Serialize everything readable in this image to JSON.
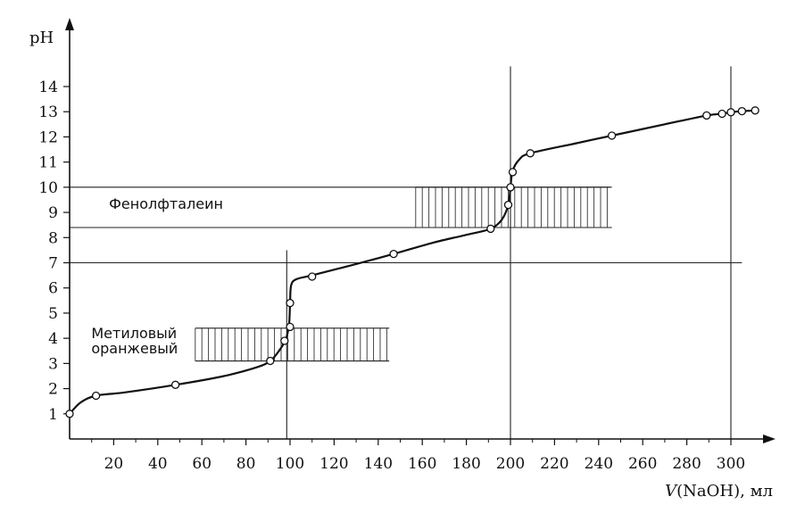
{
  "chart_data": {
    "type": "line",
    "title": "",
    "ylabel": "pH",
    "xlabel_italic": "V",
    "xlabel_rest": "(NaOH), мл",
    "xlim": [
      0,
      310
    ],
    "ylim": [
      0,
      14.8
    ],
    "x_ticks": [
      20,
      40,
      60,
      80,
      100,
      120,
      140,
      160,
      180,
      200,
      220,
      240,
      260,
      280,
      300
    ],
    "y_ticks": [
      1,
      2,
      3,
      4,
      5,
      6,
      7,
      8,
      9,
      10,
      11,
      12,
      13,
      14
    ],
    "grid": false,
    "series": [
      {
        "curve": [
          [
            0,
            1.0
          ],
          [
            5,
            1.45
          ],
          [
            12,
            1.72
          ],
          [
            25,
            1.85
          ],
          [
            48,
            2.15
          ],
          [
            70,
            2.5
          ],
          [
            85,
            2.85
          ],
          [
            91,
            3.1
          ],
          [
            95,
            3.5
          ],
          [
            98,
            3.95
          ],
          [
            99.5,
            4.5
          ],
          [
            100,
            5.35
          ],
          [
            100.5,
            6.1
          ],
          [
            103,
            6.35
          ],
          [
            110,
            6.5
          ],
          [
            130,
            6.95
          ],
          [
            147,
            7.35
          ],
          [
            165,
            7.8
          ],
          [
            182,
            8.15
          ],
          [
            191,
            8.35
          ],
          [
            196,
            8.7
          ],
          [
            199,
            9.3
          ],
          [
            200,
            10.0
          ],
          [
            201,
            10.65
          ],
          [
            204,
            11.1
          ],
          [
            209,
            11.35
          ],
          [
            230,
            11.75
          ],
          [
            246,
            12.05
          ],
          [
            270,
            12.5
          ],
          [
            289,
            12.85
          ],
          [
            296,
            12.92
          ],
          [
            300,
            12.98
          ],
          [
            305,
            13.02
          ],
          [
            311,
            13.05
          ]
        ],
        "markers": [
          [
            0,
            1.0
          ],
          [
            12,
            1.72
          ],
          [
            48,
            2.15
          ],
          [
            91,
            3.1
          ],
          [
            97.5,
            3.9
          ],
          [
            100,
            4.45
          ],
          [
            100,
            5.4
          ],
          [
            110,
            6.45
          ],
          [
            147,
            7.35
          ],
          [
            191,
            8.35
          ],
          [
            199,
            9.3
          ],
          [
            200,
            10.0
          ],
          [
            201,
            10.6
          ],
          [
            209,
            11.35
          ],
          [
            246,
            12.05
          ],
          [
            289,
            12.85
          ],
          [
            296,
            12.92
          ],
          [
            300,
            12.98
          ],
          [
            305,
            13.02
          ],
          [
            311,
            13.05
          ]
        ]
      }
    ],
    "reference_lines": {
      "horizontal": [
        {
          "y": 10,
          "x_from": 0,
          "x_to": 245
        },
        {
          "y": 8.4,
          "x_from": 0,
          "x_to": 245
        },
        {
          "y": 7,
          "x_from": 0,
          "x_to": 305
        }
      ],
      "vertical": [
        {
          "x": 98.5,
          "y_from": 0,
          "y_to": 7.5
        },
        {
          "x": 200,
          "y_from": 0,
          "y_to": 14.8
        },
        {
          "x": 300,
          "y_from": 0,
          "y_to": 14.8
        }
      ]
    },
    "shaded_regions": [
      {
        "x_from": 157,
        "x_to": 246,
        "y_from": 8.4,
        "y_to": 10
      },
      {
        "x_from": 57,
        "x_to": 145,
        "y_from": 3.1,
        "y_to": 4.4
      }
    ],
    "annotations": [
      {
        "lines": [
          "Фенолфталеин"
        ],
        "x": 13,
        "y": 9.15
      },
      {
        "lines": [
          "Метиловый",
          "оранжевый"
        ],
        "x": 5,
        "y": 4.0
      }
    ]
  }
}
